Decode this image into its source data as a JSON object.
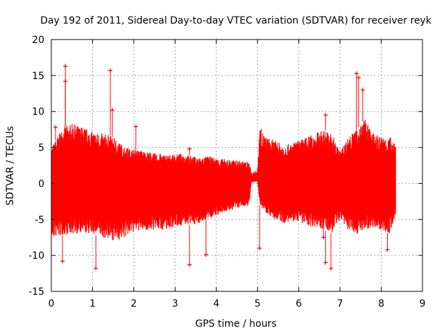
{
  "chart_data": {
    "type": "scatter",
    "title": "Day 192 of 2011, Sidereal Day-to-day VTEC variation (SDTVAR) for receiver reyk",
    "xlabel": "GPS time / hours",
    "ylabel": "SDTVAR / TECUs",
    "xlim": [
      0,
      9
    ],
    "ylim": [
      -15,
      20
    ],
    "xticks": [
      0,
      1,
      2,
      3,
      4,
      5,
      6,
      7,
      8,
      9
    ],
    "yticks": [
      -15,
      -10,
      -5,
      0,
      5,
      10,
      15,
      20
    ],
    "grid": true,
    "marker": "+",
    "color": "#ff0000",
    "series": [
      {
        "name": "SDTVAR",
        "envelope": {
          "x": [
            0.0,
            0.1,
            0.2,
            0.3,
            0.5,
            0.8,
            1.0,
            1.2,
            1.4,
            1.6,
            1.8,
            2.0,
            2.2,
            2.5,
            2.8,
            3.0,
            3.2,
            3.4,
            3.6,
            3.8,
            4.0,
            4.2,
            4.5,
            4.8,
            4.85,
            5.0,
            5.05,
            5.2,
            5.4,
            5.6,
            5.8,
            6.0,
            6.2,
            6.4,
            6.6,
            6.8,
            7.0,
            7.2,
            7.4,
            7.6,
            7.8,
            8.0,
            8.2,
            8.35
          ],
          "upper": [
            5.0,
            6.0,
            7.0,
            8.0,
            8.3,
            7.8,
            7.2,
            7.0,
            6.8,
            6.0,
            5.0,
            4.8,
            4.6,
            4.2,
            4.0,
            4.0,
            4.2,
            3.8,
            3.6,
            3.8,
            3.5,
            3.4,
            3.2,
            3.0,
            1.5,
            2.0,
            8.0,
            6.5,
            6.0,
            5.5,
            5.5,
            6.0,
            6.5,
            7.0,
            7.5,
            7.0,
            4.5,
            6.5,
            7.5,
            9.0,
            7.0,
            6.5,
            6.5,
            6.0
          ],
          "lower": [
            -8.0,
            -7.5,
            -7.5,
            -7.2,
            -7.0,
            -7.0,
            -7.0,
            -7.5,
            -7.8,
            -8.0,
            -7.5,
            -6.8,
            -6.5,
            -6.5,
            -6.4,
            -6.0,
            -5.8,
            -5.8,
            -5.5,
            -5.0,
            -4.5,
            -4.0,
            -3.5,
            -3.0,
            0.3,
            0.5,
            -3.0,
            -4.0,
            -5.0,
            -5.5,
            -5.5,
            -5.2,
            -6.0,
            -6.0,
            -6.5,
            -7.0,
            -5.0,
            -6.5,
            -7.0,
            -6.5,
            -6.0,
            -6.5,
            -7.0,
            -5.0
          ]
        },
        "outliers": [
          {
            "x": 0.1,
            "y": 7.8
          },
          {
            "x": 0.27,
            "y": -10.8
          },
          {
            "x": 0.34,
            "y": 16.3
          },
          {
            "x": 0.34,
            "y": 14.2
          },
          {
            "x": 1.08,
            "y": -11.8
          },
          {
            "x": 1.43,
            "y": 15.7
          },
          {
            "x": 1.48,
            "y": 10.2
          },
          {
            "x": 2.05,
            "y": 7.9
          },
          {
            "x": 3.35,
            "y": 4.8
          },
          {
            "x": 3.35,
            "y": -11.3
          },
          {
            "x": 3.75,
            "y": -9.9
          },
          {
            "x": 5.05,
            "y": -9.0
          },
          {
            "x": 6.6,
            "y": -7.5
          },
          {
            "x": 6.65,
            "y": 9.5
          },
          {
            "x": 6.65,
            "y": -11.0
          },
          {
            "x": 6.78,
            "y": -11.8
          },
          {
            "x": 7.4,
            "y": 15.3
          },
          {
            "x": 7.45,
            "y": 14.7
          },
          {
            "x": 7.55,
            "y": 13.0
          },
          {
            "x": 8.15,
            "y": -9.2
          }
        ]
      }
    ]
  }
}
